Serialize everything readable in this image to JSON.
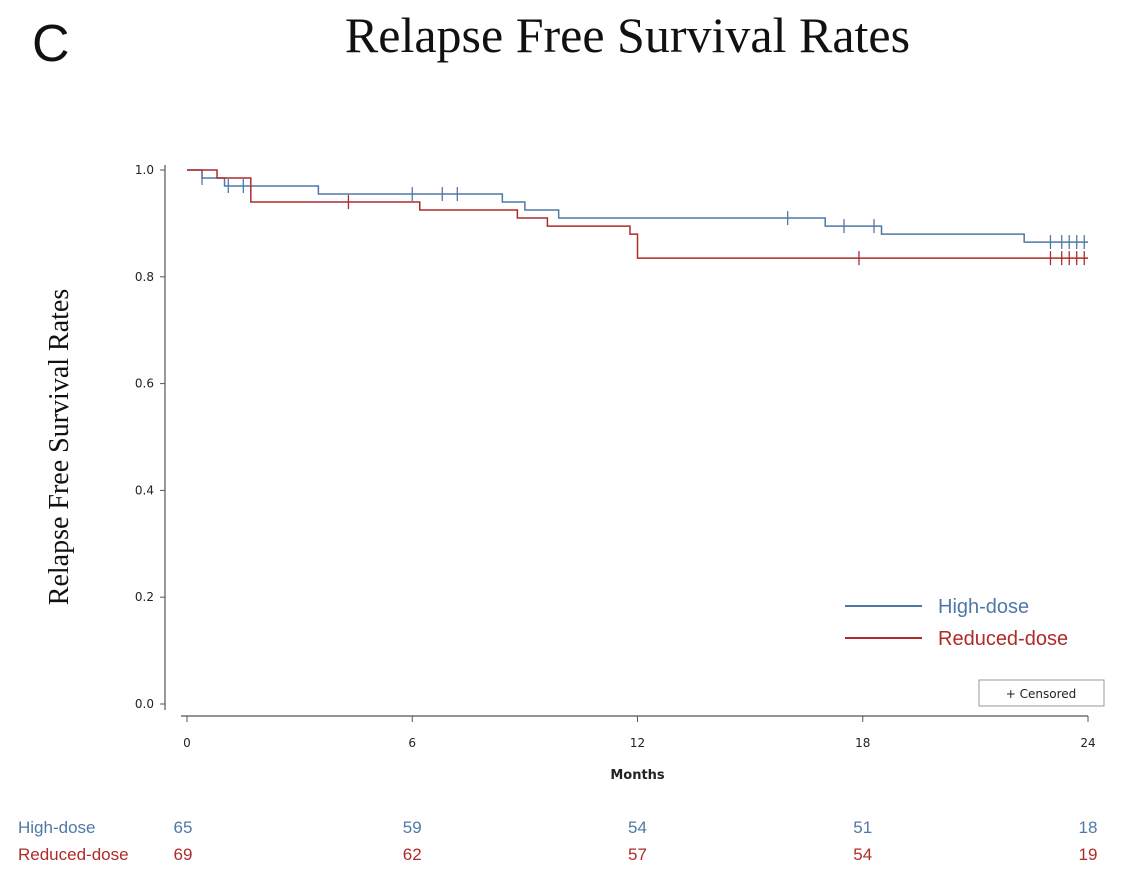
{
  "panel_letter": "C",
  "title": "Relapse Free Survival Rates",
  "colors": {
    "high": "#4f78a8",
    "reduced": "#b02a2a",
    "axis": "#555555"
  },
  "chart_data": {
    "type": "line",
    "title": "Relapse Free Survival Rates",
    "xlabel": "Months",
    "ylabel": "Relapse Free Survival Rates",
    "xlim": [
      0,
      24
    ],
    "ylim": [
      0,
      1.0
    ],
    "x_ticks": [
      0,
      6,
      12,
      18,
      24
    ],
    "y_ticks": [
      "0.0",
      "0.2",
      "0.4",
      "0.6",
      "0.8",
      "1.0"
    ],
    "legend": {
      "placement": "bottom-right",
      "entries": [
        "High-dose",
        "Reduced-dose"
      ],
      "censor_label": "+ Censored"
    },
    "series": [
      {
        "name": "High-dose",
        "color": "#4f78a8",
        "steps": [
          [
            0,
            1.0
          ],
          [
            0.4,
            0.985
          ],
          [
            1.0,
            0.97
          ],
          [
            1.6,
            0.97
          ],
          [
            3.5,
            0.955
          ],
          [
            8.4,
            0.94
          ],
          [
            9.0,
            0.925
          ],
          [
            9.9,
            0.91
          ],
          [
            16.0,
            0.91
          ],
          [
            17.0,
            0.895
          ],
          [
            18.5,
            0.88
          ],
          [
            22.3,
            0.865
          ],
          [
            24.0,
            0.865
          ]
        ],
        "censored": [
          [
            0.4,
            0.985
          ],
          [
            1.1,
            0.97
          ],
          [
            1.5,
            0.97
          ],
          [
            6.0,
            0.955
          ],
          [
            6.8,
            0.955
          ],
          [
            7.2,
            0.955
          ],
          [
            16.0,
            0.91
          ],
          [
            17.5,
            0.895
          ],
          [
            18.3,
            0.895
          ],
          [
            23.0,
            0.865
          ],
          [
            23.3,
            0.865
          ],
          [
            23.5,
            0.865
          ],
          [
            23.7,
            0.865
          ],
          [
            23.9,
            0.865
          ]
        ]
      },
      {
        "name": "Reduced-dose",
        "color": "#b02a2a",
        "steps": [
          [
            0,
            1.0
          ],
          [
            0.8,
            0.985
          ],
          [
            1.7,
            0.94
          ],
          [
            6.2,
            0.925
          ],
          [
            8.8,
            0.91
          ],
          [
            9.6,
            0.895
          ],
          [
            11.8,
            0.88
          ],
          [
            12.0,
            0.835
          ],
          [
            24.0,
            0.835
          ]
        ],
        "censored": [
          [
            4.3,
            0.94
          ],
          [
            17.9,
            0.835
          ],
          [
            23.0,
            0.835
          ],
          [
            23.3,
            0.835
          ],
          [
            23.5,
            0.835
          ],
          [
            23.7,
            0.835
          ],
          [
            23.9,
            0.835
          ]
        ]
      }
    ],
    "at_risk": {
      "times": [
        0,
        6,
        12,
        18,
        24
      ],
      "rows": [
        {
          "label": "High-dose",
          "values": [
            "65",
            "59",
            "54",
            "51",
            "18"
          ]
        },
        {
          "label": "Reduced-dose",
          "values": [
            "69",
            "62",
            "57",
            "54",
            "19"
          ]
        }
      ]
    }
  }
}
